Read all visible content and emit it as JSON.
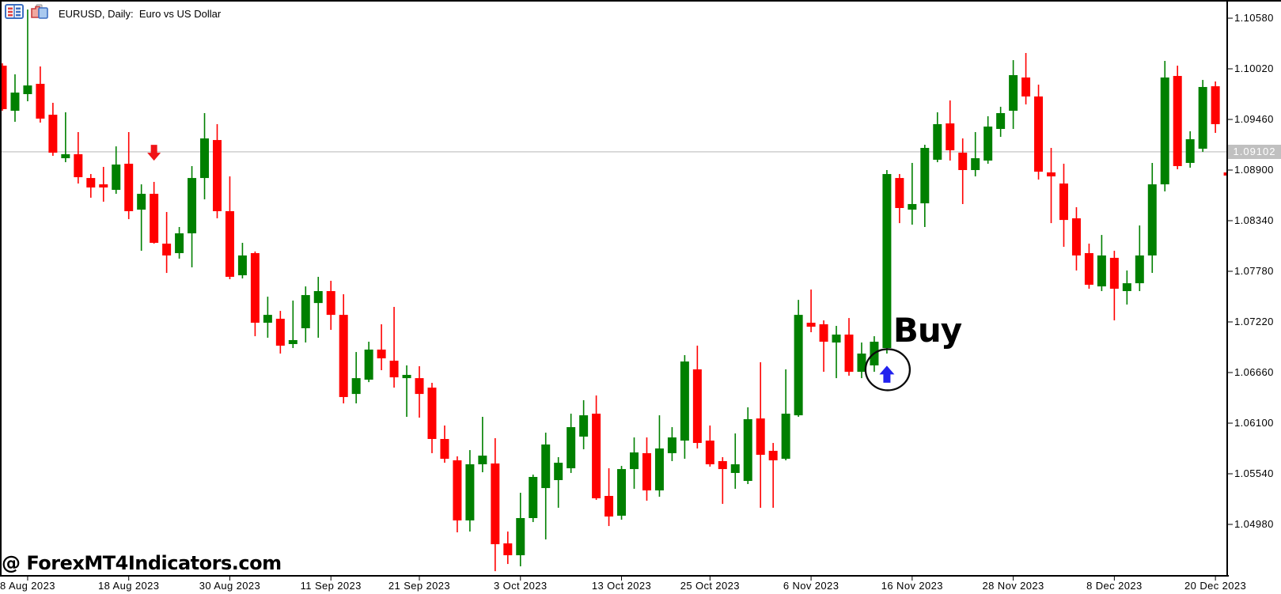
{
  "window": {
    "title": "EURUSD, Daily:  Euro vs US Dollar",
    "icons": [
      {
        "name": "market-watch-icon"
      },
      {
        "name": "chart-windows-icon"
      }
    ]
  },
  "price_axis": {
    "tick_labels": [
      "1.10580",
      "1.10020",
      "1.09460",
      "1.08900",
      "1.08340",
      "1.07780",
      "1.07220",
      "1.06660",
      "1.06100",
      "1.05540",
      "1.04980"
    ],
    "current_price": "1.09102"
  },
  "time_axis": {
    "ticks": [
      {
        "label": "8 Aug 2023",
        "bar_index": 2
      },
      {
        "label": "18 Aug 2023",
        "bar_index": 10
      },
      {
        "label": "30 Aug 2023",
        "bar_index": 18
      },
      {
        "label": "11 Sep 2023",
        "bar_index": 26
      },
      {
        "label": "21 Sep 2023",
        "bar_index": 33
      },
      {
        "label": "3 Oct 2023",
        "bar_index": 41
      },
      {
        "label": "13 Oct 2023",
        "bar_index": 49
      },
      {
        "label": "25 Oct 2023",
        "bar_index": 56
      },
      {
        "label": "6 Nov 2023",
        "bar_index": 64
      },
      {
        "label": "16 Nov 2023",
        "bar_index": 72
      },
      {
        "label": "28 Nov 2023",
        "bar_index": 80
      },
      {
        "label": "8 Dec 2023",
        "bar_index": 88
      },
      {
        "label": "20 Dec 2023",
        "bar_index": 96
      }
    ]
  },
  "annotations": {
    "buy_label": "Buy",
    "watermark": "@ ForexMT4Indicators.com"
  },
  "colors": {
    "bull": "#008000",
    "bear": "#ff0000",
    "frame": "#000000",
    "price_line": "#bdbdbd",
    "price_badge_bg": "#c0c0c0",
    "price_badge_text": "#ffffff",
    "sell_arrow": "#f01418",
    "buy_arrow": "#2222ee",
    "signal_circle": "#0a0a0a"
  },
  "chart_data": {
    "type": "candlestick",
    "title": "EURUSD, Daily: Euro vs US Dollar",
    "symbol": "EURUSD",
    "timeframe": "Daily",
    "ylim": [
      1.04402,
      1.10781
    ],
    "y_ticks": [
      1.1058,
      1.1002,
      1.0946,
      1.089,
      1.0834,
      1.0778,
      1.0722,
      1.0666,
      1.061,
      1.0554,
      1.0498
    ],
    "current_price": 1.09102,
    "grid": false,
    "candles": [
      [
        1.10055,
        1.10081,
        1.09556,
        1.09574
      ],
      [
        1.09556,
        1.09959,
        1.09434,
        1.09757
      ],
      [
        1.0974,
        1.10676,
        1.09661,
        1.09836
      ],
      [
        1.09854,
        1.10046,
        1.09425,
        1.09469
      ],
      [
        1.09512,
        1.09644,
        1.09057,
        1.09092
      ],
      [
        1.09031,
        1.09539,
        1.08987,
        1.09075
      ],
      [
        1.09075,
        1.0932,
        1.08751,
        1.08821
      ],
      [
        1.08812,
        1.08856,
        1.08594,
        1.08707
      ],
      [
        1.08742,
        1.08935,
        1.0855,
        1.08707
      ],
      [
        1.08681,
        1.09162,
        1.08637,
        1.08961
      ],
      [
        1.0897,
        1.0932,
        1.08357,
        1.08445
      ],
      [
        1.08462,
        1.08742,
        1.08007,
        1.08637
      ],
      [
        1.08637,
        1.08769,
        1.08086,
        1.08095
      ],
      [
        1.08086,
        1.08436,
        1.07762,
        1.07955
      ],
      [
        1.07981,
        1.0827,
        1.0792,
        1.082
      ],
      [
        1.082,
        1.08944,
        1.07824,
        1.08812
      ],
      [
        1.08812,
        1.0953,
        1.08576,
        1.0925
      ],
      [
        1.09232,
        1.09408,
        1.08366,
        1.08445
      ],
      [
        1.08445,
        1.0883,
        1.07692,
        1.07719
      ],
      [
        1.07736,
        1.08095,
        1.07701,
        1.07955
      ],
      [
        1.07981,
        1.07999,
        1.07062,
        1.07211
      ],
      [
        1.07211,
        1.07499,
        1.07045,
        1.07298
      ],
      [
        1.07255,
        1.07342,
        1.0687,
        1.06957
      ],
      [
        1.06975,
        1.07456,
        1.06931,
        1.07019
      ],
      [
        1.0715,
        1.07613,
        1.06992,
        1.07517
      ],
      [
        1.07429,
        1.07719,
        1.07045,
        1.07561
      ],
      [
        1.07561,
        1.07675,
        1.07132,
        1.07298
      ],
      [
        1.07298,
        1.07526,
        1.06319,
        1.06389
      ],
      [
        1.06423,
        1.06887,
        1.06319,
        1.06598
      ],
      [
        1.06581,
        1.07001,
        1.06554,
        1.06914
      ],
      [
        1.06914,
        1.07194,
        1.06686,
        1.06817
      ],
      [
        1.06791,
        1.07386,
        1.06493,
        1.06607
      ],
      [
        1.06598,
        1.06739,
        1.0617,
        1.06634
      ],
      [
        1.06598,
        1.0673,
        1.06161,
        1.06423
      ],
      [
        1.06493,
        1.06546,
        1.05768,
        1.05925
      ],
      [
        1.05925,
        1.06074,
        1.05662,
        1.05706
      ],
      [
        1.05689,
        1.05733,
        1.04892,
        1.05024
      ],
      [
        1.05024,
        1.05802,
        1.04901,
        1.05645
      ],
      [
        1.05645,
        1.0617,
        1.05557,
        1.05741
      ],
      [
        1.05654,
        1.05934,
        1.04463,
        1.04761
      ],
      [
        1.0477,
        1.04901,
        1.04542,
        1.04639
      ],
      [
        1.04639,
        1.0533,
        1.04516,
        1.0505
      ],
      [
        1.0505,
        1.05531,
        1.05006,
        1.05505
      ],
      [
        1.05382,
        1.05995,
        1.04814,
        1.05864
      ],
      [
        1.0547,
        1.05724,
        1.05164,
        1.05662
      ],
      [
        1.05601,
        1.06205,
        1.05549,
        1.06056
      ],
      [
        1.05951,
        1.06354,
        1.05811,
        1.06187
      ],
      [
        1.06205,
        1.06406,
        1.05251,
        1.05269
      ],
      [
        1.05295,
        1.05601,
        1.04962,
        1.05067
      ],
      [
        1.05076,
        1.05627,
        1.05032,
        1.05592
      ],
      [
        1.05592,
        1.05942,
        1.05374,
        1.05776
      ],
      [
        1.05768,
        1.05942,
        1.05242,
        1.05356
      ],
      [
        1.05356,
        1.06187,
        1.05286,
        1.0582
      ],
      [
        1.05768,
        1.06056,
        1.0568,
        1.05942
      ],
      [
        1.05907,
        1.06852,
        1.05706,
        1.06782
      ],
      [
        1.06695,
        1.06957,
        1.0582,
        1.05881
      ],
      [
        1.05907,
        1.06074,
        1.05619,
        1.05645
      ],
      [
        1.0568,
        1.05724,
        1.05207,
        1.05592
      ],
      [
        1.05549,
        1.05986,
        1.05374,
        1.05645
      ],
      [
        1.05461,
        1.06275,
        1.05426,
        1.06144
      ],
      [
        1.06152,
        1.06774,
        1.05164,
        1.0575
      ],
      [
        1.05794,
        1.05881,
        1.05164,
        1.05689
      ],
      [
        1.05706,
        1.06695,
        1.05689,
        1.06205
      ],
      [
        1.06187,
        1.07464,
        1.0617,
        1.07298
      ],
      [
        1.07211,
        1.07578,
        1.07106,
        1.07167
      ],
      [
        1.07194,
        1.07237,
        1.06668,
        1.07001
      ],
      [
        1.06992,
        1.07176,
        1.06598,
        1.0708
      ],
      [
        1.0708,
        1.07263,
        1.06625,
        1.06668
      ],
      [
        1.06668,
        1.06992,
        1.06598,
        1.0687
      ],
      [
        1.06739,
        1.07062,
        1.06668,
        1.07001
      ],
      [
        1.06931,
        1.089,
        1.0687,
        1.08856
      ],
      [
        1.08812,
        1.08856,
        1.08313,
        1.0848
      ],
      [
        1.08462,
        1.08979,
        1.08296,
        1.08524
      ],
      [
        1.08532,
        1.0918,
        1.0827,
        1.09145
      ],
      [
        1.09014,
        1.09539,
        1.08987,
        1.09408
      ],
      [
        1.09416,
        1.0967,
        1.09005,
        1.09119
      ],
      [
        1.09092,
        1.0925,
        1.08524,
        1.089
      ],
      [
        1.089,
        1.0932,
        1.0883,
        1.09031
      ],
      [
        1.09005,
        1.09495,
        1.0897,
        1.09381
      ],
      [
        1.09355,
        1.096,
        1.09267,
        1.0953
      ],
      [
        1.09556,
        1.10116,
        1.09355,
        1.0995
      ],
      [
        1.09924,
        1.10195,
        1.09626,
        1.09714
      ],
      [
        1.09714,
        1.09845,
        1.08795,
        1.08882
      ],
      [
        1.08874,
        1.09145,
        1.08313,
        1.0883
      ],
      [
        1.08751,
        1.0897,
        1.08051,
        1.08348
      ],
      [
        1.08366,
        1.08489,
        1.07789,
        1.07955
      ],
      [
        1.07981,
        1.08086,
        1.07587,
        1.07631
      ],
      [
        1.07613,
        1.08182,
        1.07561,
        1.07955
      ],
      [
        1.07929,
        1.08007,
        1.07237,
        1.07587
      ],
      [
        1.07561,
        1.07789,
        1.07412,
        1.07648
      ],
      [
        1.07648,
        1.08287,
        1.07561,
        1.07955
      ],
      [
        1.07955,
        1.08979,
        1.07762,
        1.08742
      ],
      [
        1.08742,
        1.10107,
        1.08664,
        1.09924
      ],
      [
        1.09941,
        1.10055,
        1.08909,
        1.08944
      ],
      [
        1.08979,
        1.09329,
        1.08926,
        1.09241
      ],
      [
        1.09136,
        1.09897,
        1.09101,
        1.09819
      ],
      [
        1.09827,
        1.0988,
        1.09311,
        1.09408
      ],
      [
        1.08874,
        1.08909,
        1.08305,
        1.08839
      ]
    ],
    "signals": [
      {
        "type": "sell",
        "marker": "red-down-arrow",
        "bar_index": 12,
        "price": 1.091
      },
      {
        "type": "buy",
        "marker": "blue-up-arrow-circled",
        "bar_index": 70,
        "price": 1.0663,
        "label": "Buy"
      }
    ]
  }
}
